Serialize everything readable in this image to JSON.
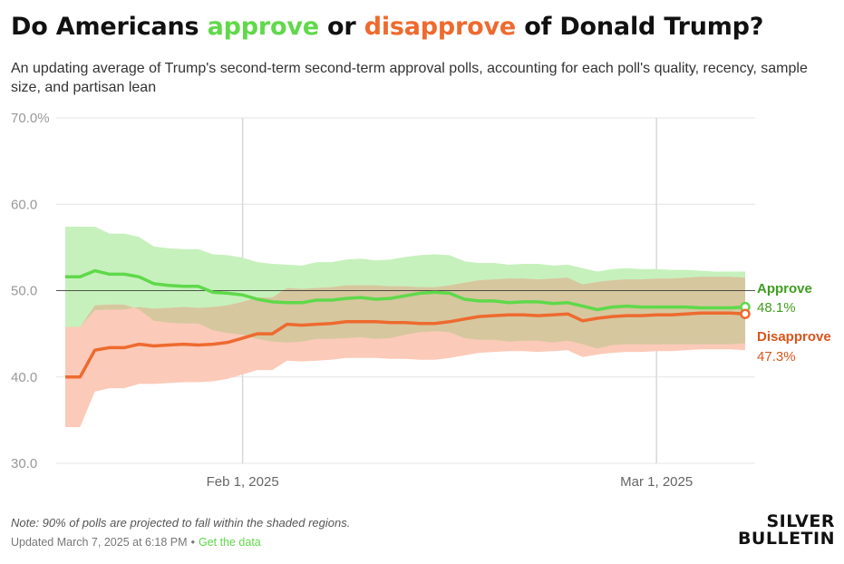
{
  "header": {
    "title_parts": [
      "Do Americans ",
      "approve",
      " or ",
      "disapprove",
      " of Donald Trump?"
    ],
    "subtitle": "An updating average of Trump's second-term second-term approval polls, accounting for each poll's quality, recency, sample size, and partisan lean"
  },
  "colors": {
    "approve_line": "#5fd94a",
    "approve_band": "#c6f1bc",
    "disapprove_line": "#ee6a2f",
    "disapprove_band": "#fccab8",
    "overlap_band": "#d6c79f",
    "end_label_approve": "#3f9e1f",
    "end_label_disapprove": "#d9551c"
  },
  "chart_data": {
    "type": "line",
    "x_start": "2025-01-20",
    "x_end": "2025-03-07",
    "x_ticks": [
      {
        "date": "2025-02-01",
        "label": "Feb 1, 2025"
      },
      {
        "date": "2025-03-01",
        "label": "Mar 1, 2025"
      }
    ],
    "y_ticks": [
      {
        "value": 70,
        "label": "70.0%"
      },
      {
        "value": 60,
        "label": "60.0"
      },
      {
        "value": 50,
        "label": "50.0"
      },
      {
        "value": 40,
        "label": "40.0"
      },
      {
        "value": 30,
        "label": "30.0"
      }
    ],
    "ylim": [
      30,
      70
    ],
    "reference_line": 50,
    "dates": [
      "2025-01-20",
      "2025-01-21",
      "2025-01-22",
      "2025-01-23",
      "2025-01-24",
      "2025-01-25",
      "2025-01-26",
      "2025-01-27",
      "2025-01-28",
      "2025-01-29",
      "2025-01-30",
      "2025-01-31",
      "2025-02-01",
      "2025-02-02",
      "2025-02-03",
      "2025-02-04",
      "2025-02-05",
      "2025-02-06",
      "2025-02-07",
      "2025-02-08",
      "2025-02-09",
      "2025-02-10",
      "2025-02-11",
      "2025-02-12",
      "2025-02-13",
      "2025-02-14",
      "2025-02-15",
      "2025-02-16",
      "2025-02-17",
      "2025-02-18",
      "2025-02-19",
      "2025-02-20",
      "2025-02-21",
      "2025-02-22",
      "2025-02-23",
      "2025-02-24",
      "2025-02-25",
      "2025-02-26",
      "2025-02-27",
      "2025-02-28",
      "2025-03-01",
      "2025-03-02",
      "2025-03-03",
      "2025-03-04",
      "2025-03-05",
      "2025-03-06",
      "2025-03-07"
    ],
    "series": [
      {
        "name": "Approve",
        "values": [
          51.6,
          51.6,
          52.3,
          51.9,
          51.9,
          51.6,
          50.8,
          50.6,
          50.5,
          50.5,
          49.8,
          49.7,
          49.5,
          49.0,
          48.7,
          48.6,
          48.6,
          48.9,
          48.9,
          49.1,
          49.2,
          49.0,
          49.1,
          49.4,
          49.7,
          49.8,
          49.7,
          49.0,
          48.8,
          48.8,
          48.6,
          48.7,
          48.7,
          48.5,
          48.6,
          48.2,
          47.8,
          48.1,
          48.2,
          48.1,
          48.1,
          48.1,
          48.1,
          48.0,
          48.0,
          48.0,
          48.1
        ],
        "lower": [
          45.8,
          45.8,
          48.3,
          48.4,
          48.4,
          47.8,
          46.5,
          46.3,
          46.2,
          46.2,
          45.4,
          45.1,
          44.9,
          44.4,
          44.1,
          44.0,
          44.1,
          44.4,
          44.4,
          44.5,
          44.6,
          44.4,
          44.5,
          44.9,
          45.2,
          45.3,
          45.2,
          44.5,
          44.3,
          44.3,
          44.1,
          44.2,
          44.2,
          44.0,
          44.2,
          43.8,
          43.3,
          43.7,
          43.8,
          43.8,
          43.8,
          43.8,
          43.8,
          43.8,
          43.8,
          43.8,
          43.9
        ],
        "upper": [
          57.4,
          57.4,
          57.4,
          56.6,
          56.6,
          56.2,
          55.1,
          54.9,
          54.8,
          54.8,
          54.2,
          54.1,
          53.8,
          53.3,
          53.1,
          53.0,
          52.9,
          53.3,
          53.3,
          53.6,
          53.7,
          53.5,
          53.6,
          53.9,
          54.1,
          54.2,
          54.1,
          53.4,
          53.2,
          53.2,
          53.0,
          53.1,
          53.1,
          52.9,
          53.0,
          52.6,
          52.2,
          52.5,
          52.6,
          52.5,
          52.5,
          52.4,
          52.4,
          52.3,
          52.2,
          52.2,
          52.2
        ],
        "last_label": "48.1%"
      },
      {
        "name": "Disapprove",
        "values": [
          40.0,
          40.0,
          43.1,
          43.4,
          43.4,
          43.8,
          43.6,
          43.7,
          43.8,
          43.7,
          43.8,
          44.0,
          44.5,
          45.0,
          45.0,
          46.1,
          46.0,
          46.1,
          46.2,
          46.4,
          46.4,
          46.4,
          46.3,
          46.3,
          46.2,
          46.2,
          46.4,
          46.7,
          47.0,
          47.1,
          47.2,
          47.2,
          47.1,
          47.2,
          47.3,
          46.5,
          46.8,
          47.0,
          47.1,
          47.1,
          47.2,
          47.2,
          47.3,
          47.4,
          47.4,
          47.4,
          47.3
        ],
        "lower": [
          34.2,
          34.2,
          38.3,
          38.7,
          38.7,
          39.2,
          39.2,
          39.3,
          39.4,
          39.4,
          39.5,
          39.8,
          40.3,
          40.8,
          40.8,
          41.9,
          41.8,
          41.9,
          42.0,
          42.2,
          42.2,
          42.2,
          42.1,
          42.1,
          42.0,
          42.0,
          42.2,
          42.5,
          42.8,
          42.9,
          43.0,
          43.0,
          42.9,
          43.0,
          43.1,
          42.3,
          42.6,
          42.8,
          42.9,
          42.9,
          43.0,
          43.0,
          43.1,
          43.2,
          43.2,
          43.2,
          43.1
        ],
        "upper": [
          45.8,
          45.8,
          47.7,
          47.8,
          47.8,
          48.1,
          47.9,
          48.0,
          48.1,
          48.0,
          48.1,
          48.3,
          48.7,
          49.2,
          49.2,
          50.3,
          50.2,
          50.3,
          50.4,
          50.6,
          50.6,
          50.6,
          50.5,
          50.5,
          50.4,
          50.4,
          50.6,
          50.9,
          51.2,
          51.3,
          51.4,
          51.4,
          51.3,
          51.4,
          51.5,
          50.7,
          51.0,
          51.2,
          51.3,
          51.3,
          51.4,
          51.4,
          51.5,
          51.6,
          51.6,
          51.6,
          51.5
        ],
        "last_label": "47.3%"
      }
    ]
  },
  "footer": {
    "note": "Note: 90% of polls are projected to fall within the shaded regions.",
    "updated": "Updated March 7, 2025 at 6:18 PM",
    "separator": "•",
    "get_data_link": "Get the data"
  },
  "logo": {
    "line1": "SILVER",
    "line2": "BULLETIN"
  }
}
